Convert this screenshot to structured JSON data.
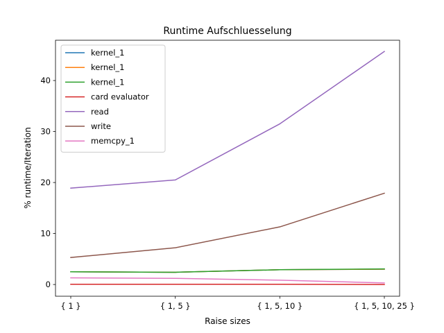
{
  "chart_data": {
    "type": "line",
    "title": "Runtime Aufschluesselung",
    "xlabel": "Raise sizes",
    "ylabel": "% runtime/Iteration",
    "categories": [
      "{ 1 }",
      "{ 1, 5 }",
      "{ 1, 5, 10 }",
      "{ 1, 5, 10, 25 }"
    ],
    "ylim": [
      -2.3,
      47.9
    ],
    "yticks": [
      0,
      10,
      20,
      30,
      40
    ],
    "grid": false,
    "legend_position": "top-left",
    "series": [
      {
        "name": "kernel_1",
        "color": "#1f77b4",
        "values": [
          2.5,
          2.4,
          2.9,
          3.0
        ]
      },
      {
        "name": "kernel_1",
        "color": "#ff7f0e",
        "values": [
          2.5,
          2.4,
          2.9,
          3.0
        ]
      },
      {
        "name": "kernel_1",
        "color": "#2ca02c",
        "values": [
          2.5,
          2.4,
          2.9,
          3.05
        ]
      },
      {
        "name": "card evaluator",
        "color": "#d62728",
        "values": [
          0.05,
          0.05,
          0.05,
          0.0
        ]
      },
      {
        "name": "read",
        "color": "#9467bd",
        "values": [
          18.9,
          20.5,
          31.5,
          45.7
        ]
      },
      {
        "name": "write",
        "color": "#8c564b",
        "values": [
          5.3,
          7.2,
          11.3,
          17.9
        ]
      },
      {
        "name": "memcpy_1",
        "color": "#e377c2",
        "values": [
          1.3,
          1.2,
          0.85,
          0.3
        ]
      }
    ]
  }
}
